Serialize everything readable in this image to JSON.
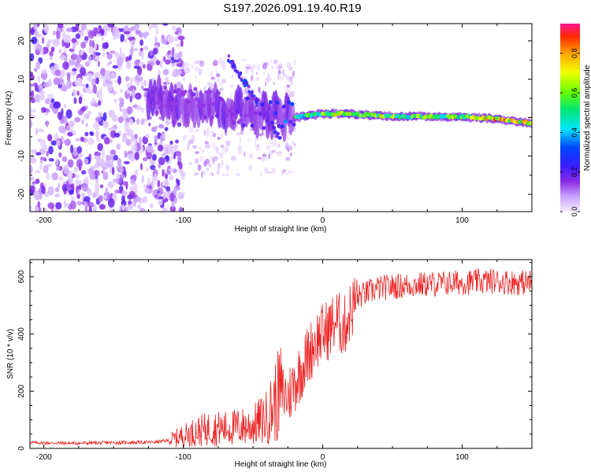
{
  "title": "S197.2026.091.19.40.R19",
  "chart_data": [
    {
      "type": "heatmap",
      "title": "S197.2026.091.19.40.R19",
      "xlabel": "Height of straight line (km)",
      "ylabel": "Frequency (Hz)",
      "xlim": [
        -210,
        150
      ],
      "ylim": [
        -24.5,
        24.5
      ],
      "xticks": [
        -200,
        -100,
        0,
        100
      ],
      "yticks": [
        -20,
        -10,
        0,
        10,
        20
      ],
      "colorbar": {
        "label": "Normalized spectral amplitude",
        "range": [
          0.0,
          0.95
        ],
        "ticks": [
          0.0,
          0.2,
          0.4,
          0.6,
          0.8
        ]
      },
      "ridge": [
        {
          "x": -120,
          "y": 5,
          "amp": 0.25
        },
        {
          "x": -100,
          "y": 4,
          "amp": 0.3
        },
        {
          "x": -80,
          "y": 3,
          "amp": 0.3
        },
        {
          "x": -60,
          "y": 2,
          "amp": 0.35
        },
        {
          "x": -40,
          "y": 1,
          "amp": 0.4
        },
        {
          "x": -20,
          "y": 0,
          "amp": 0.55
        },
        {
          "x": 0,
          "y": 1,
          "amp": 0.7
        },
        {
          "x": 20,
          "y": 1,
          "amp": 0.8
        },
        {
          "x": 40,
          "y": 0.5,
          "amp": 0.75
        },
        {
          "x": 60,
          "y": 0.3,
          "amp": 0.65
        },
        {
          "x": 80,
          "y": 0.3,
          "amp": 0.7
        },
        {
          "x": 100,
          "y": 0.2,
          "amp": 0.65
        },
        {
          "x": 120,
          "y": -0.2,
          "amp": 0.9
        },
        {
          "x": 135,
          "y": -0.8,
          "amp": 0.9
        },
        {
          "x": 150,
          "y": -1.5,
          "amp": 0.8
        }
      ]
    },
    {
      "type": "line",
      "xlabel": "Height of straight line (km)",
      "ylabel": "SNR (10 * v/v)",
      "xlim": [
        -210,
        150
      ],
      "ylim": [
        0,
        660
      ],
      "xticks": [
        -200,
        -100,
        0,
        100
      ],
      "yticks": [
        0,
        200,
        400,
        600
      ],
      "series": [
        {
          "name": "SNR",
          "color": "#ee2222",
          "x": [
            -210,
            -180,
            -150,
            -120,
            -110,
            -100,
            -90,
            -80,
            -70,
            -60,
            -50,
            -40,
            -30,
            -25,
            -20,
            -15,
            -10,
            -5,
            0,
            5,
            10,
            15,
            20,
            25,
            30,
            40,
            60,
            80,
            100,
            120,
            140,
            150
          ],
          "values": [
            20,
            18,
            20,
            22,
            28,
            45,
            60,
            70,
            70,
            75,
            80,
            110,
            200,
            180,
            230,
            280,
            330,
            380,
            400,
            420,
            450,
            420,
            480,
            530,
            540,
            560,
            570,
            575,
            580,
            585,
            580,
            580
          ]
        }
      ]
    }
  ]
}
